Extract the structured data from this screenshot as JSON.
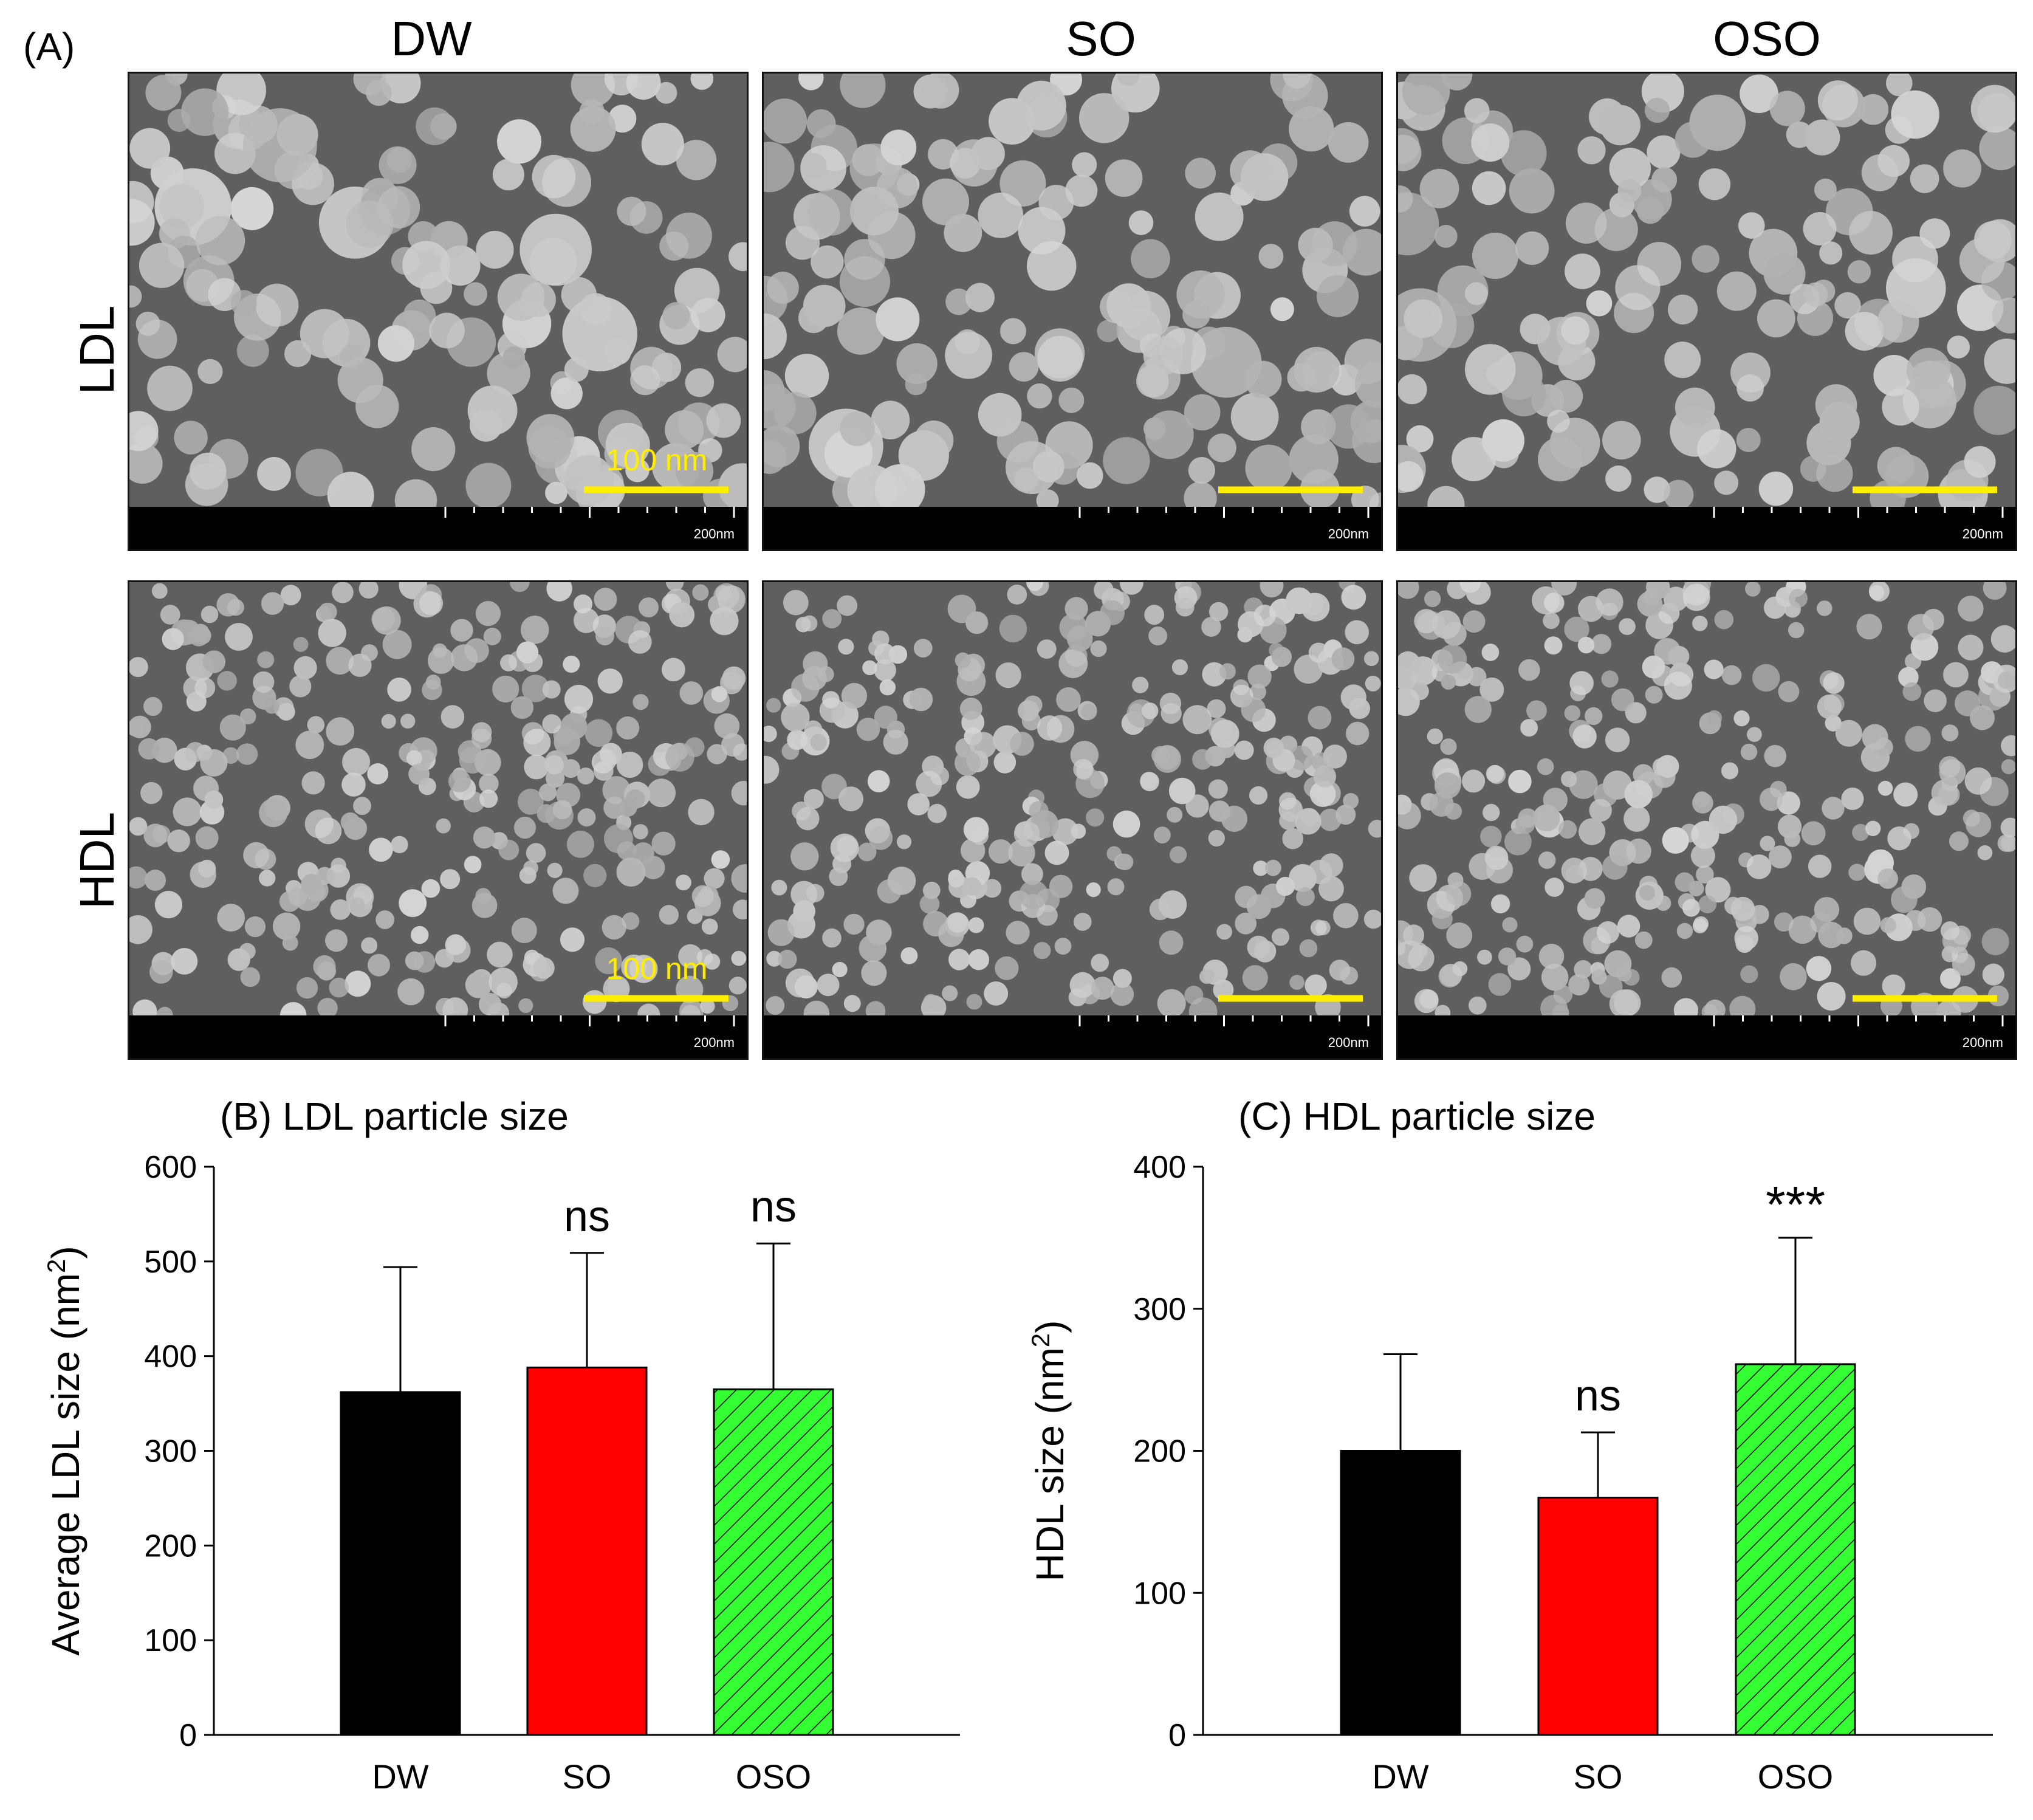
{
  "panel_a": {
    "label": "(A)",
    "columns": [
      "DW",
      "SO",
      "OSO"
    ],
    "rows": [
      "LDL",
      "HDL"
    ],
    "scale_bar_label": "100 nm",
    "ruler_label": "200nm",
    "colors": {
      "scale_bar": "#ffee00"
    }
  },
  "chart_data": [
    {
      "panel": "(B)",
      "type": "bar",
      "title": "LDL particle size",
      "categories": [
        "DW",
        "SO",
        "OSO"
      ],
      "values": [
        362,
        388,
        365
      ],
      "errors_upper": [
        494,
        509,
        519
      ],
      "annotations": [
        "",
        "ns",
        "ns"
      ],
      "ylabel": "Average LDL size (nm",
      "ylabel_sup": "2",
      "ylabel_end": ")",
      "xlabel": "",
      "ylim": [
        0,
        600
      ],
      "yticks": [
        0,
        100,
        200,
        300,
        400,
        500,
        600
      ],
      "colors": [
        "#000000",
        "#ff0000",
        "#33ff33"
      ],
      "hatched": [
        false,
        false,
        true
      ]
    },
    {
      "panel": "(C)",
      "type": "bar",
      "title": "HDL particle size",
      "categories": [
        "DW",
        "SO",
        "OSO"
      ],
      "values": [
        200,
        167,
        261
      ],
      "errors_upper": [
        268,
        213,
        350
      ],
      "annotations": [
        "",
        "ns",
        "***"
      ],
      "ylabel": "HDL size (nm",
      "ylabel_sup": "2",
      "ylabel_end": ")",
      "xlabel": "",
      "ylim": [
        0,
        400
      ],
      "yticks": [
        0,
        100,
        200,
        300,
        400
      ],
      "colors": [
        "#000000",
        "#ff0000",
        "#33ff33"
      ],
      "hatched": [
        false,
        false,
        true
      ]
    }
  ]
}
